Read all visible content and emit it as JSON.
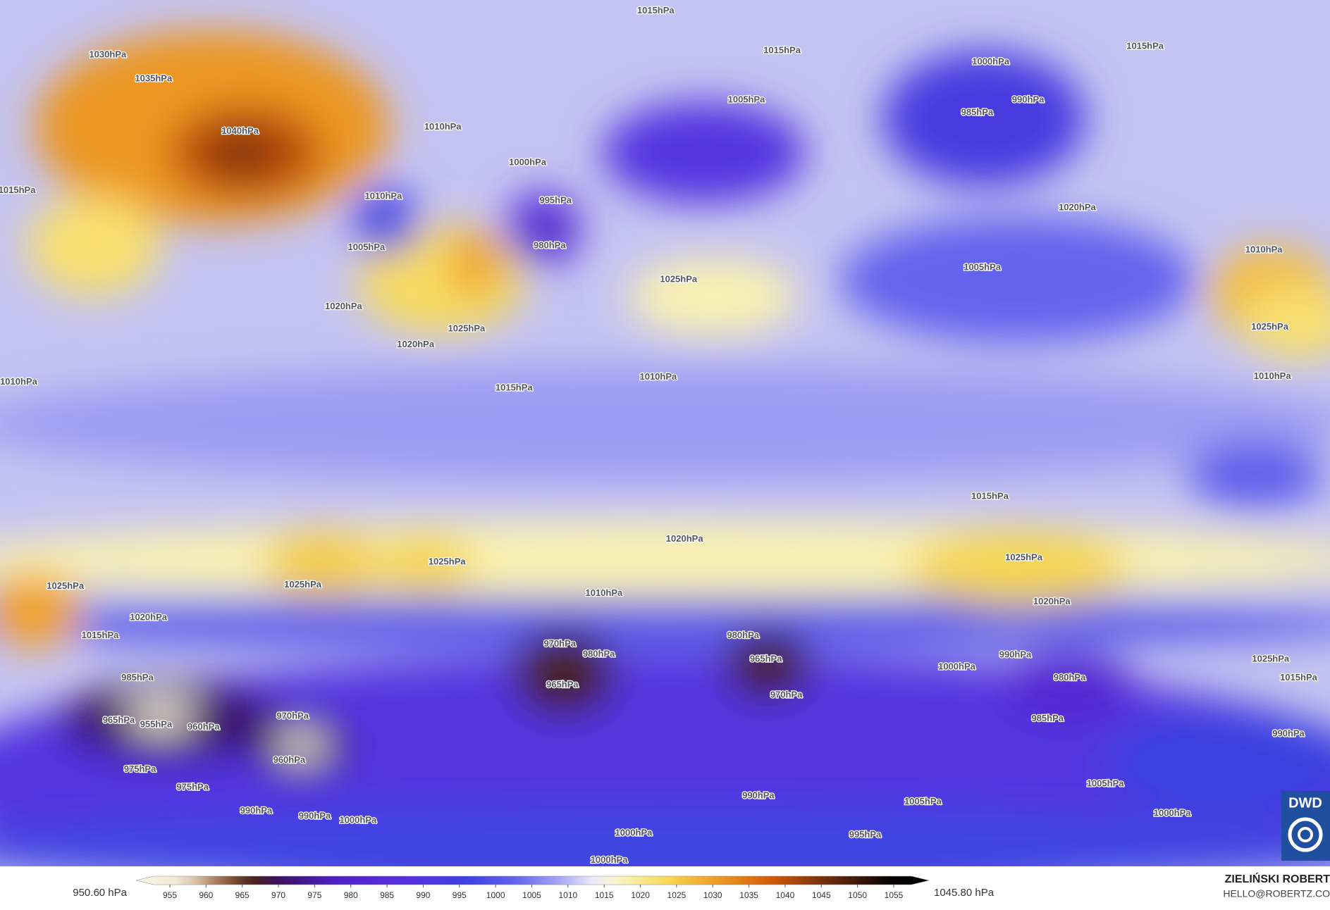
{
  "map": {
    "isobar_labels": [
      "1015hPa",
      "1030hPa",
      "1035hPa",
      "1040hPa",
      "1015hPa",
      "1015hPa",
      "1000hPa",
      "990hPa",
      "985hPa",
      "1005hPa",
      "1010hPa",
      "1000hPa",
      "995hPa",
      "980hPa",
      "1015hPa",
      "1010hPa",
      "1005hPa",
      "1020hPa",
      "1025hPa",
      "1020hPa",
      "1025hPa",
      "1010hPa",
      "1015hPa",
      "1005hPa",
      "1020hPa",
      "1010hPa",
      "1025hPa",
      "1010hPa",
      "1010hPa",
      "1015hPa",
      "1020hPa",
      "1025hPa",
      "1020hPa",
      "1025hPa",
      "1025hPa",
      "1025hPa",
      "1020hPa",
      "1015hPa",
      "1010hPa",
      "985hPa",
      "970hPa",
      "980hPa",
      "965hPa",
      "980hPa",
      "965hPa",
      "970hPa",
      "980hPa",
      "990hPa",
      "1000hPa",
      "965hPa",
      "955hPa",
      "960hPa",
      "970hPa",
      "960hPa",
      "975hPa",
      "975hPa",
      "990hPa",
      "990hPa",
      "1000hPa",
      "990hPa",
      "1005hPa",
      "1000hPa",
      "995hPa",
      "1000hPa",
      "1025hPa",
      "1015hPa",
      "985hPa",
      "990hPa",
      "1005hPa",
      "1000hPa"
    ]
  },
  "colorbar": {
    "ticks": [
      955,
      960,
      965,
      970,
      975,
      980,
      985,
      990,
      995,
      1000,
      1005,
      1010,
      1015,
      1020,
      1025,
      1030,
      1035,
      1040,
      1045,
      1050,
      1055
    ],
    "min_label": "950.60 hPa",
    "max_label": "1045.80 hPa"
  },
  "credit": {
    "author": "ZIELIŃSKI ROBERT",
    "email": "HELLO@ROBERTZ.CO",
    "logo": "DWD"
  }
}
